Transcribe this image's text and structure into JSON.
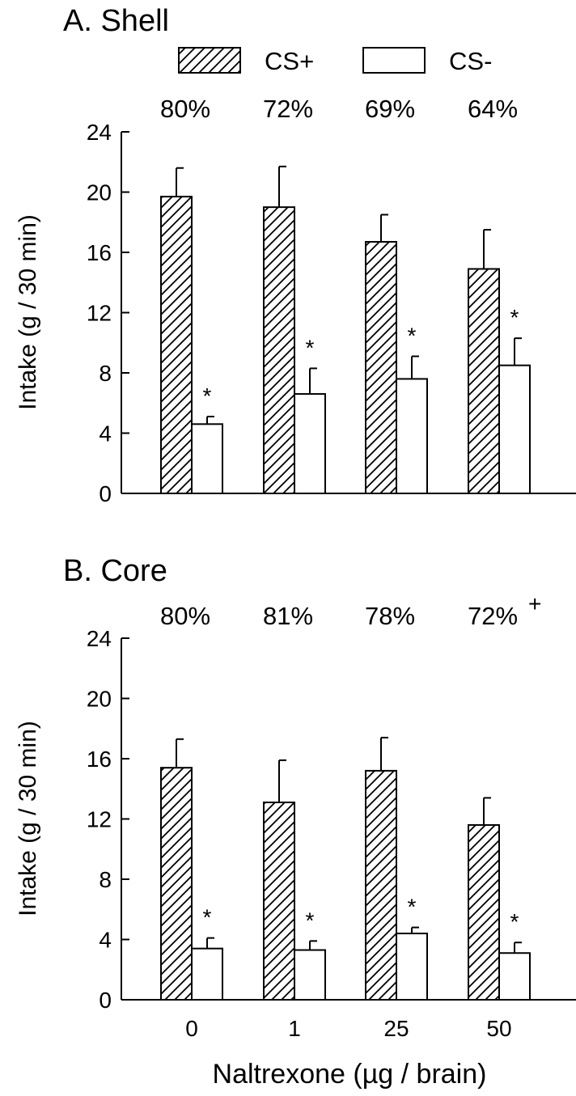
{
  "legend": [
    {
      "label": "CS+",
      "pattern": "hatched"
    },
    {
      "label": "CS-",
      "pattern": "open"
    }
  ],
  "x_axis_title": "Naltrexone (µg / brain)",
  "chart_data": [
    {
      "type": "bar",
      "title": "A. Shell",
      "categories": [
        "0",
        "1",
        "25",
        "50"
      ],
      "ylabel": "Intake (g / 30 min)",
      "ylim": [
        0,
        24
      ],
      "yticks": [
        "0",
        "4",
        "8",
        "12",
        "16",
        "20",
        "24"
      ],
      "percentages": [
        "80%",
        "72%",
        "69%",
        "64%"
      ],
      "percent_marks": [
        "",
        "",
        "",
        ""
      ],
      "significance": [
        "*",
        "*",
        "*",
        "*"
      ],
      "series": [
        {
          "name": "CS+",
          "values": [
            19.7,
            19.0,
            16.7,
            14.9
          ],
          "errors": [
            1.9,
            2.7,
            1.8,
            2.6
          ]
        },
        {
          "name": "CS-",
          "values": [
            4.6,
            6.6,
            7.6,
            8.5
          ],
          "errors": [
            0.5,
            1.7,
            1.5,
            1.8
          ]
        }
      ]
    },
    {
      "type": "bar",
      "title": "B. Core",
      "categories": [
        "0",
        "1",
        "25",
        "50"
      ],
      "ylabel": "Intake (g / 30 min)",
      "ylim": [
        0,
        24
      ],
      "yticks": [
        "0",
        "4",
        "8",
        "12",
        "16",
        "20",
        "24"
      ],
      "percentages": [
        "80%",
        "81%",
        "78%",
        "72%"
      ],
      "percent_marks": [
        "",
        "",
        "",
        "+"
      ],
      "significance": [
        "*",
        "*",
        "*",
        "*"
      ],
      "series": [
        {
          "name": "CS+",
          "values": [
            15.4,
            13.1,
            15.2,
            11.6
          ],
          "errors": [
            1.9,
            2.8,
            2.2,
            1.8
          ]
        },
        {
          "name": "CS-",
          "values": [
            3.4,
            3.3,
            4.4,
            3.1
          ],
          "errors": [
            0.7,
            0.6,
            0.4,
            0.7
          ]
        }
      ]
    }
  ]
}
